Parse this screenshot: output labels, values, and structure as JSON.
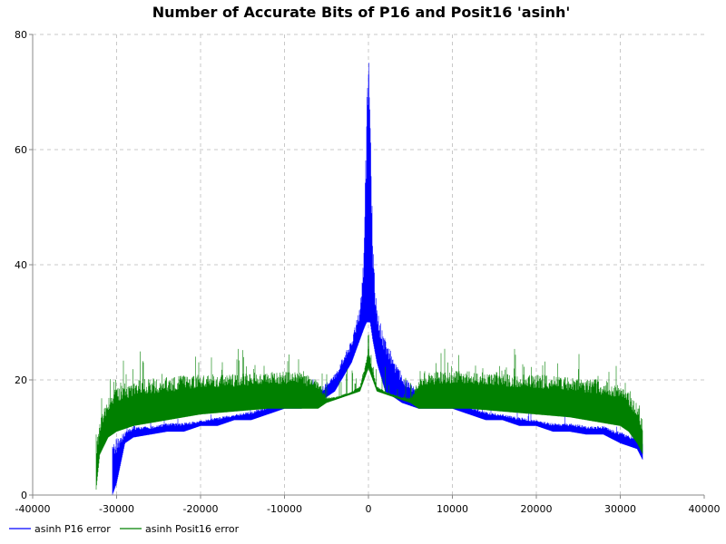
{
  "chart_data": {
    "type": "line",
    "title": "Number of Accurate Bits of P16 and Posit16 'asinh'",
    "xlabel": "",
    "ylabel": "",
    "xlim": [
      -40000,
      40000
    ],
    "ylim": [
      0,
      80
    ],
    "x_ticks": [
      "-40000",
      "-30000",
      "-20000",
      "-10000",
      "0",
      "10000",
      "20000",
      "30000",
      "40000"
    ],
    "y_ticks": [
      "0",
      "20",
      "40",
      "60",
      "80"
    ],
    "grid": true,
    "legend_position": "bottom-left",
    "series": [
      {
        "name": "asinh P16 error",
        "color": "#0000ff",
        "envelope": {
          "x": [
            -30500,
            -30000,
            -29000,
            -28000,
            -26000,
            -24000,
            -22000,
            -20000,
            -18000,
            -16000,
            -14000,
            -12000,
            -10000,
            -8000,
            -6000,
            -4000,
            -2000,
            -1000,
            -500,
            -200,
            0,
            200,
            500,
            1000,
            2000,
            4000,
            6000,
            8000,
            10000,
            12000,
            14000,
            16000,
            18000,
            20000,
            22000,
            24000,
            26000,
            28000,
            30000,
            32000,
            32700
          ],
          "low": [
            0,
            2,
            9,
            10,
            10.5,
            11,
            11,
            12,
            12,
            13,
            13,
            14,
            15,
            15,
            16,
            18,
            23,
            27,
            29,
            30,
            30,
            30,
            27,
            23,
            18,
            16,
            15,
            15,
            15,
            14,
            13,
            13,
            12,
            12,
            11,
            11,
            10.5,
            10.5,
            9,
            8,
            6
          ],
          "high": [
            9,
            10,
            11,
            12,
            12,
            12.5,
            12.5,
            13,
            13.5,
            14,
            14.5,
            15.5,
            16,
            17,
            18,
            21,
            27,
            33,
            45,
            70,
            78,
            70,
            45,
            33,
            27,
            21,
            18,
            17,
            16,
            15.5,
            14.5,
            14,
            13.5,
            13,
            12.5,
            12.5,
            12,
            12,
            11,
            10,
            9
          ]
        }
      },
      {
        "name": "asinh Posit16 error",
        "color": "#008000",
        "envelope": {
          "x": [
            -32500,
            -32000,
            -31000,
            -30000,
            -28000,
            -24000,
            -20000,
            -16000,
            -12000,
            -8000,
            -6000,
            -5000,
            -4000,
            -3000,
            -2000,
            -1000,
            -500,
            0,
            500,
            1000,
            2000,
            3000,
            4000,
            5000,
            6000,
            8000,
            12000,
            16000,
            20000,
            24000,
            28000,
            30000,
            31000,
            32000,
            32700
          ],
          "low": [
            0,
            7,
            10,
            11,
            12,
            13,
            14,
            14.5,
            15,
            15,
            15,
            16,
            16.5,
            17,
            17.5,
            18,
            20,
            22,
            20,
            18,
            17.5,
            17,
            16.5,
            16,
            15,
            15,
            15,
            14.5,
            14,
            13.5,
            12.5,
            12,
            11,
            9,
            7
          ],
          "high": [
            9,
            13,
            17,
            19,
            20,
            20.5,
            21,
            21,
            21.5,
            21.5,
            20,
            17,
            17,
            17.5,
            18,
            19,
            22,
            26,
            22,
            19,
            18,
            17.5,
            17,
            17,
            20,
            21.5,
            21.5,
            21,
            21,
            20.5,
            20,
            19,
            18,
            16,
            13
          ]
        }
      }
    ]
  }
}
